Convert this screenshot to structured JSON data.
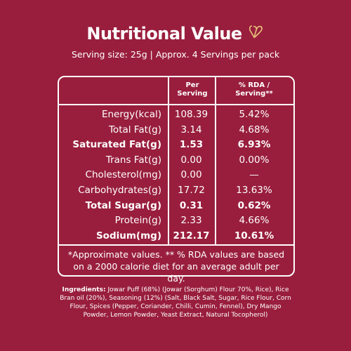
{
  "header": {
    "title": "Nutritional Value",
    "subtitle": "Serving size: 25g | Approx. 4 Servings per pack"
  },
  "table": {
    "columns": [
      "Per Serving",
      "% RDA / Serving**"
    ],
    "rows": [
      {
        "label": "Energy(kcal)",
        "per_serving": "108.39",
        "rda": "5.42%",
        "bold": false
      },
      {
        "label": "Total Fat(g)",
        "per_serving": "3.14",
        "rda": "4.68%",
        "bold": false
      },
      {
        "label": "Saturated Fat(g)",
        "per_serving": "1.53",
        "rda": "6.93%",
        "bold": true
      },
      {
        "label": "Trans Fat(g)",
        "per_serving": "0.00",
        "rda": "0.00%",
        "bold": false
      },
      {
        "label": "Cholesterol(mg)",
        "per_serving": "0.00",
        "rda": "—",
        "bold": false
      },
      {
        "label": "Carbohydrates(g)",
        "per_serving": "17.72",
        "rda": "13.63%",
        "bold": false
      },
      {
        "label": "Total Sugar(g)",
        "per_serving": "0.31",
        "rda": "0.62%",
        "bold": true
      },
      {
        "label": "Protein(g)",
        "per_serving": "2.33",
        "rda": "4.66%",
        "bold": false
      },
      {
        "label": "Sodium(mg)",
        "per_serving": "212.17",
        "rda": "10.61%",
        "bold": true
      }
    ],
    "footnote": "*Approximate values. ** % RDA values are based on a 2000 calorie diet for an average adult per day."
  },
  "ingredients": {
    "label": "Ingredients:",
    "text": "Jowar Puff (68%) (Jowar (Sorghum) Flour 70%, Rice), Rice Bran oil (20%), Seasoning (12%) (Salt, Black Salt, Sugar, Rice Flour, Corn Flour, Spices (Pepper, Coriander, Chilli, Cumin, Fennel), Dry Mango Powder, Lemon Powder, Yeast Extract, Natural Tocopherol)"
  }
}
